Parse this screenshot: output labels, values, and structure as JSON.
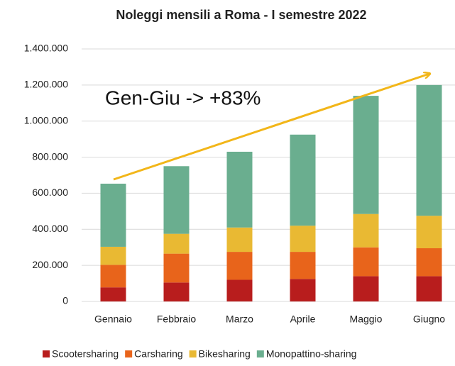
{
  "chart_data": {
    "type": "stacked_bar",
    "title": "Noleggi mensili a Roma - I semestre 2022",
    "annotation": "Gen-Giu -> +83%",
    "categories": [
      "Gennaio",
      "Febbraio",
      "Marzo",
      "Aprile",
      "Maggio",
      "Giugno"
    ],
    "series": [
      {
        "name": "Scootersharing",
        "color": "#b81d1d",
        "values": [
          78000,
          105000,
          120000,
          125000,
          140000,
          140000
        ]
      },
      {
        "name": "Carsharing",
        "color": "#e8641b",
        "values": [
          125000,
          160000,
          155000,
          150000,
          160000,
          155000
        ]
      },
      {
        "name": "Bikesharing",
        "color": "#e9b933",
        "values": [
          100000,
          110000,
          135000,
          145000,
          185000,
          180000
        ]
      },
      {
        "name": "Monopattino-sharing",
        "color": "#6aae8f",
        "values": [
          350000,
          375000,
          420000,
          505000,
          655000,
          725000
        ]
      }
    ],
    "ylim": [
      0,
      1400000
    ],
    "yticks": [
      0,
      {
        "value": 200000,
        "label": "200.000"
      },
      {
        "value": 400000,
        "label": "400.000"
      },
      {
        "value": 600000,
        "label": "600.000"
      },
      {
        "value": 800000,
        "label": "800.000"
      },
      {
        "value": 1000000,
        "label": "1.000.000"
      },
      {
        "value": 1200000,
        "label": "1.200.000"
      },
      {
        "value": 1400000,
        "label": "1.400.000"
      }
    ],
    "grid": true,
    "legend": "bottom"
  }
}
